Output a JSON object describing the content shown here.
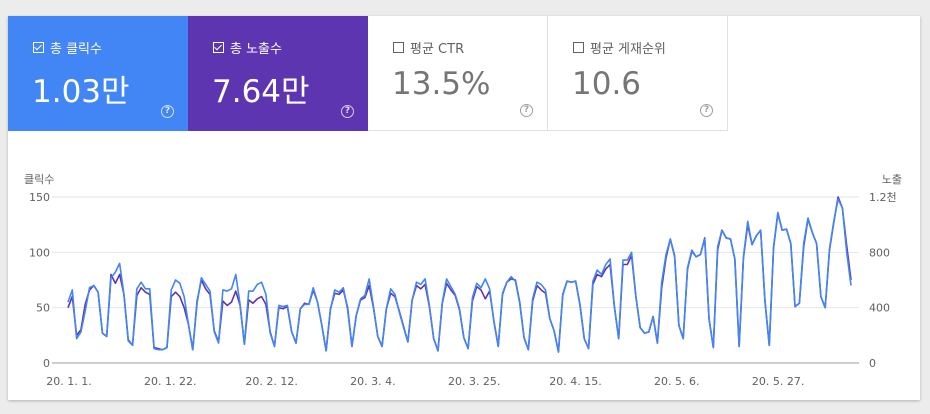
{
  "metrics": [
    {
      "label": "총 클릭수",
      "value": "1.03만",
      "checked": true,
      "color": "#4285f4"
    },
    {
      "label": "총 노출수",
      "value": "7.64만",
      "checked": true,
      "color": "#5e35b1"
    },
    {
      "label": "평균 CTR",
      "value": "13.5%",
      "checked": false
    },
    {
      "label": "평균 게재순위",
      "value": "10.6",
      "checked": false
    }
  ],
  "help_glyph": "?",
  "chart_data": {
    "type": "line",
    "left_axis_title": "클릭수",
    "right_axis_title": "노출",
    "left_ticks": [
      "150",
      "100",
      "50",
      "0"
    ],
    "right_ticks": [
      "1.2천",
      "800",
      "400",
      "0"
    ],
    "ylim_left": [
      0,
      150
    ],
    "ylim_right": [
      0,
      1200
    ],
    "x_tick_labels": [
      "20. 1. 1.",
      "20. 1. 22.",
      "20. 2. 12.",
      "20. 3. 4.",
      "20. 3. 25.",
      "20. 4. 15.",
      "20. 5. 6.",
      "20. 5. 27."
    ],
    "grid": true,
    "series": [
      {
        "name": "클릭수",
        "axis": "left",
        "color": "#4285f4",
        "values": [
          55,
          66,
          22,
          28,
          47,
          68,
          70,
          64,
          27,
          24,
          77,
          82,
          90,
          62,
          20,
          16,
          67,
          73,
          67,
          67,
          13,
          12,
          12,
          14,
          66,
          75,
          72,
          60,
          35,
          12,
          54,
          77,
          71,
          65,
          28,
          18,
          66,
          65,
          67,
          80,
          53,
          17,
          65,
          65,
          71,
          73,
          62,
          27,
          15,
          52,
          51,
          52,
          28,
          18,
          49,
          53,
          53,
          68,
          55,
          34,
          11,
          48,
          66,
          64,
          68,
          48,
          15,
          43,
          58,
          61,
          76,
          51,
          24,
          15,
          49,
          67,
          62,
          46,
          32,
          19,
          57,
          73,
          71,
          76,
          52,
          22,
          11,
          55,
          76,
          69,
          62,
          49,
          23,
          13,
          59,
          72,
          68,
          76,
          67,
          37,
          15,
          63,
          73,
          78,
          74,
          54,
          23,
          12,
          58,
          73,
          71,
          66,
          40,
          29,
          10,
          61,
          74,
          73,
          74,
          52,
          22,
          13,
          74,
          84,
          80,
          89,
          94,
          51,
          22,
          93,
          93,
          100,
          60,
          32,
          27,
          28,
          42,
          18,
          73,
          98,
          112,
          96,
          34,
          22,
          86,
          102,
          96,
          98,
          112,
          40,
          14,
          105,
          120,
          113,
          112,
          94,
          15,
          96,
          128,
          107,
          115,
          120,
          56,
          16,
          105,
          136,
          120,
          121,
          108,
          51,
          54,
          108,
          131,
          118,
          108,
          60,
          50,
          103,
          128,
          148,
          140,
          100,
          70
        ]
      },
      {
        "name": "노출",
        "axis": "right",
        "color": "#5e35b1",
        "values": [
          400,
          480,
          200,
          240,
          424,
          528,
          560,
          512,
          216,
          192,
          640,
          576,
          640,
          496,
          168,
          128,
          488,
          544,
          512,
          496,
          112,
          104,
          96,
          112,
          480,
          512,
          480,
          400,
          280,
          96,
          448,
          600,
          536,
          496,
          232,
          152,
          448,
          416,
          440,
          520,
          416,
          136,
          456,
          432,
          464,
          480,
          424,
          224,
          120,
          400,
          392,
          408,
          224,
          144,
          392,
          432,
          424,
          528,
          440,
          272,
          88,
          392,
          504,
          496,
          528,
          400,
          120,
          344,
          456,
          472,
          560,
          400,
          192,
          120,
          392,
          504,
          480,
          376,
          264,
          152,
          456,
          560,
          536,
          568,
          408,
          176,
          88,
          432,
          576,
          528,
          488,
          384,
          184,
          104,
          448,
          552,
          528,
          464,
          520,
          304,
          120,
          496,
          584,
          608,
          600,
          440,
          184,
          96,
          448,
          560,
          528,
          504,
          320,
          232,
          80,
          496,
          592,
          584,
          592,
          424,
          176,
          104,
          568,
          640,
          624,
          680,
          712,
          408,
          176,
          712,
          712,
          776,
          480,
          256,
          216,
          224,
          336,
          144,
          544,
          760,
          896,
          776,
          272,
          176,
          680,
          808,
          768,
          784,
          904,
          320,
          112,
          816,
          960,
          904,
          896,
          752,
          120,
          760,
          1000,
          856,
          920,
          960,
          448,
          128,
          832,
          1080,
          960,
          968,
          864,
          408,
          432,
          840,
          1040,
          944,
          864,
          480,
          400,
          816,
          1016,
          1200,
          1120,
          848,
          600
        ]
      }
    ]
  }
}
